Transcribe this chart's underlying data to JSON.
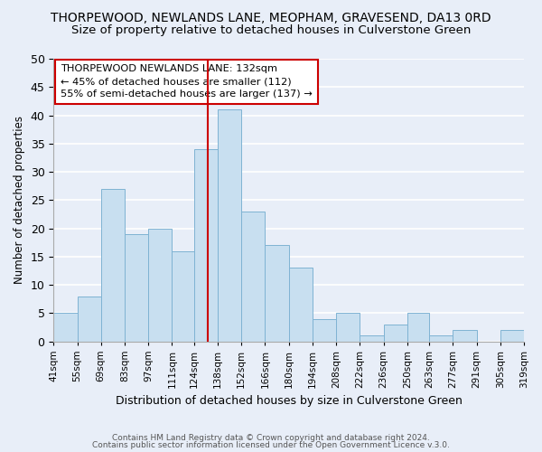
{
  "title": "THORPEWOOD, NEWLANDS LANE, MEOPHAM, GRAVESEND, DA13 0RD",
  "subtitle": "Size of property relative to detached houses in Culverstone Green",
  "xlabel": "Distribution of detached houses by size in Culverstone Green",
  "ylabel": "Number of detached properties",
  "bin_edges": [
    41,
    55,
    69,
    83,
    97,
    111,
    124,
    138,
    152,
    166,
    180,
    194,
    208,
    222,
    236,
    250,
    263,
    277,
    291,
    305,
    319
  ],
  "counts": [
    5,
    8,
    27,
    19,
    20,
    16,
    34,
    41,
    23,
    17,
    13,
    4,
    5,
    1,
    3,
    5,
    1,
    2,
    0,
    2
  ],
  "bar_color": "#c8dff0",
  "bar_edgecolor": "#7fb3d3",
  "vline_x": 132,
  "vline_color": "#cc0000",
  "ylim": [
    0,
    50
  ],
  "tick_labels": [
    "41sqm",
    "55sqm",
    "69sqm",
    "83sqm",
    "97sqm",
    "111sqm",
    "124sqm",
    "138sqm",
    "152sqm",
    "166sqm",
    "180sqm",
    "194sqm",
    "208sqm",
    "222sqm",
    "236sqm",
    "250sqm",
    "263sqm",
    "277sqm",
    "291sqm",
    "305sqm",
    "319sqm"
  ],
  "annotation_title": "THORPEWOOD NEWLANDS LANE: 132sqm",
  "annotation_line1": "← 45% of detached houses are smaller (112)",
  "annotation_line2": "55% of semi-detached houses are larger (137) →",
  "annotation_box_color": "#ffffff",
  "annotation_box_edgecolor": "#cc0000",
  "footer1": "Contains HM Land Registry data © Crown copyright and database right 2024.",
  "footer2": "Contains public sector information licensed under the Open Government Licence v.3.0.",
  "bg_color": "#e8eef8",
  "title_fontsize": 10,
  "subtitle_fontsize": 9.5,
  "yticks": [
    0,
    5,
    10,
    15,
    20,
    25,
    30,
    35,
    40,
    45,
    50
  ]
}
